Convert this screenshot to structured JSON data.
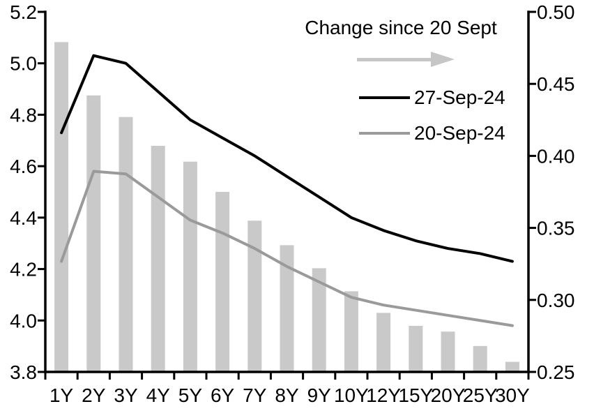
{
  "page": {
    "background": "#ffffff"
  },
  "chart_data": {
    "type": "bar+line",
    "title": "",
    "categories": [
      "1Y",
      "2Y",
      "3Y",
      "4Y",
      "5Y",
      "6Y",
      "7Y",
      "8Y",
      "9Y",
      "10Y",
      "12Y",
      "15Y",
      "20Y",
      "25Y",
      "30Y"
    ],
    "series": [
      {
        "name": "Change since 20 Sept",
        "type": "bar",
        "axis": "right",
        "color": "#c9c9c9",
        "values": [
          0.479,
          0.442,
          0.427,
          0.407,
          0.396,
          0.375,
          0.355,
          0.338,
          0.322,
          0.306,
          0.291,
          0.282,
          0.278,
          0.268,
          0.257
        ]
      },
      {
        "name": "27-Sep-24",
        "type": "line",
        "axis": "left",
        "color": "#000000",
        "values": [
          4.73,
          5.03,
          5.0,
          4.89,
          4.78,
          4.71,
          4.64,
          4.56,
          4.48,
          4.4,
          4.35,
          4.31,
          4.28,
          4.26,
          4.23
        ]
      },
      {
        "name": "20-Sep-24",
        "type": "line",
        "axis": "left",
        "color": "#9a9a9a",
        "values": [
          4.23,
          4.58,
          4.57,
          4.48,
          4.39,
          4.34,
          4.28,
          4.21,
          4.15,
          4.09,
          4.06,
          4.04,
          4.02,
          4.0,
          3.98
        ]
      }
    ],
    "axes": {
      "left": {
        "min": 3.8,
        "max": 5.2,
        "step": 0.2,
        "tick_labels": [
          "3.8",
          "4.0",
          "4.2",
          "4.4",
          "4.6",
          "4.8",
          "5.0",
          "5.2"
        ]
      },
      "right": {
        "min": 0.25,
        "max": 0.5,
        "step": 0.05,
        "tick_labels": [
          "0.25",
          "0.30",
          "0.35",
          "0.40",
          "0.45",
          "0.50"
        ]
      },
      "x_tick_labels": [
        "1Y",
        "2Y",
        "3Y",
        "4Y",
        "5Y",
        "6Y",
        "7Y",
        "8Y",
        "9Y",
        "10Y",
        "12Y",
        "15Y",
        "20Y",
        "25Y",
        "30Y"
      ]
    },
    "legend": {
      "title": "Change since 20 Sept",
      "arrow_color": "#c6c6c6",
      "entries": [
        {
          "label": "27-Sep-24",
          "color": "#000000"
        },
        {
          "label": "20-Sep-24",
          "color": "#9a9a9a"
        }
      ],
      "position": "top-right"
    },
    "grid": false
  }
}
